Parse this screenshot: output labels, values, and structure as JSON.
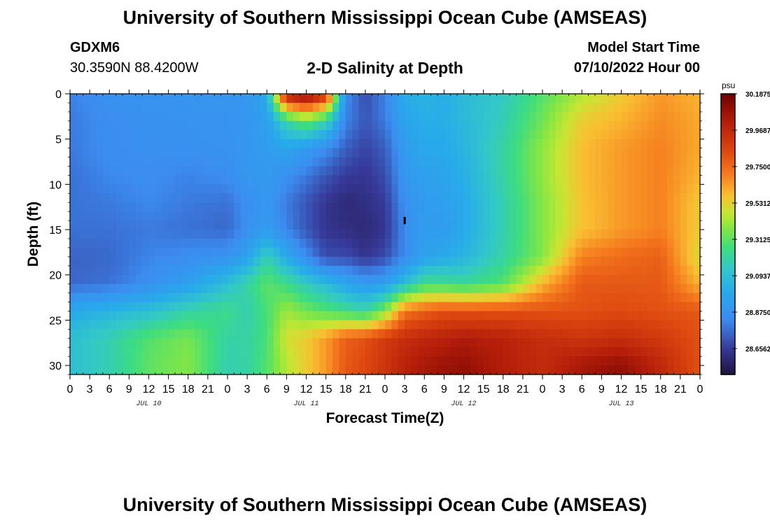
{
  "page": {
    "title": "University of Southern Mississippi Ocean Cube (AMSEAS)",
    "footer_title": "University of Southern Mississippi Ocean Cube (AMSEAS)",
    "station_id": "GDXM6",
    "station_coords": "30.3590N  88.4200W",
    "plot_title": "2-D Salinity at Depth",
    "model_start_label": "Model Start Time",
    "model_start_value": "07/10/2022 Hour 00"
  },
  "chart_data": {
    "type": "heatmap",
    "title": "2-D Salinity at Depth",
    "xlabel": "Forecast Time(Z)",
    "ylabel": "Depth (ft)",
    "x_range_hours": [
      0,
      96
    ],
    "x_tick_labels": [
      "0",
      "3",
      "6",
      "9",
      "12",
      "15",
      "18",
      "21",
      "0",
      "3",
      "6",
      "9",
      "12",
      "15",
      "18",
      "21",
      "0",
      "3",
      "6",
      "9",
      "12",
      "15",
      "18",
      "21",
      "0",
      "3",
      "6",
      "9",
      "12",
      "15",
      "18",
      "21",
      "0"
    ],
    "date_labels": [
      {
        "label": "JUL 10",
        "hour": 12
      },
      {
        "label": "JUL 11",
        "hour": 36
      },
      {
        "label": "JUL 12",
        "hour": 60
      },
      {
        "label": "JUL 13",
        "hour": 84
      }
    ],
    "ylim": [
      0,
      31
    ],
    "y_ticks": [
      0,
      5,
      10,
      15,
      20,
      25,
      30
    ],
    "y_tick_labels": [
      "0",
      "5",
      "10",
      "15",
      "20",
      "25",
      "30"
    ],
    "depth_levels": [
      0,
      3,
      6,
      9,
      12,
      15,
      18,
      21,
      24,
      27,
      30
    ],
    "time_hours": [
      0,
      6,
      12,
      18,
      24,
      27,
      30,
      33,
      36,
      39,
      42,
      45,
      48,
      51,
      54,
      57,
      60,
      66,
      72,
      78,
      84,
      90,
      96
    ],
    "salinity_grid": [
      [
        28.82,
        28.87,
        28.88,
        28.89,
        28.88,
        28.9,
        29.0,
        30.05,
        30.15,
        29.95,
        28.85,
        28.7,
        28.82,
        29.02,
        29.05,
        29.02,
        29.08,
        29.15,
        29.3,
        29.45,
        29.55,
        29.65,
        29.6
      ],
      [
        28.8,
        28.85,
        28.86,
        28.87,
        28.88,
        28.9,
        28.95,
        29.2,
        29.35,
        29.2,
        28.82,
        28.72,
        28.8,
        28.97,
        29.02,
        29.02,
        29.07,
        29.17,
        29.35,
        29.55,
        29.6,
        29.68,
        29.62
      ],
      [
        28.8,
        28.85,
        28.86,
        28.86,
        28.87,
        28.9,
        28.93,
        28.98,
        28.92,
        28.85,
        28.74,
        28.68,
        28.74,
        28.92,
        29.0,
        29.0,
        29.05,
        29.2,
        29.4,
        29.58,
        29.65,
        29.7,
        29.62
      ],
      [
        28.78,
        28.83,
        28.85,
        28.82,
        28.85,
        28.9,
        28.92,
        28.86,
        28.8,
        28.72,
        28.66,
        28.64,
        28.7,
        28.9,
        28.95,
        28.97,
        29.03,
        29.2,
        29.4,
        29.58,
        29.65,
        29.7,
        29.6
      ],
      [
        28.78,
        28.8,
        28.83,
        28.8,
        28.78,
        28.86,
        28.9,
        28.8,
        28.72,
        28.64,
        28.6,
        28.62,
        28.66,
        28.86,
        28.93,
        28.94,
        29.0,
        29.18,
        29.38,
        29.57,
        29.65,
        29.7,
        29.55
      ],
      [
        28.78,
        28.78,
        28.8,
        28.78,
        28.76,
        28.86,
        28.93,
        28.82,
        28.72,
        28.64,
        28.62,
        28.6,
        28.64,
        28.84,
        28.93,
        28.92,
        29.0,
        29.18,
        29.38,
        29.57,
        29.65,
        29.7,
        29.55
      ],
      [
        28.75,
        28.76,
        28.82,
        28.85,
        28.88,
        28.96,
        29.18,
        29.0,
        28.85,
        28.7,
        28.7,
        28.64,
        28.7,
        28.84,
        28.96,
        29.0,
        29.05,
        29.2,
        29.38,
        29.7,
        29.75,
        29.78,
        29.5
      ],
      [
        28.76,
        28.78,
        28.86,
        28.95,
        29.1,
        29.2,
        29.32,
        29.25,
        29.15,
        29.08,
        28.98,
        28.92,
        28.94,
        29.1,
        29.25,
        29.25,
        29.22,
        29.3,
        29.6,
        29.8,
        29.8,
        29.8,
        29.6
      ],
      [
        29.0,
        29.05,
        29.1,
        29.2,
        29.25,
        29.18,
        29.28,
        29.42,
        29.35,
        29.3,
        29.25,
        29.2,
        29.38,
        29.72,
        29.78,
        29.82,
        29.82,
        29.82,
        29.82,
        29.82,
        29.84,
        29.82,
        29.8
      ],
      [
        29.1,
        29.18,
        29.3,
        29.36,
        29.2,
        29.2,
        29.28,
        29.5,
        29.55,
        29.65,
        29.78,
        29.82,
        29.9,
        29.95,
        29.98,
        30.0,
        30.03,
        30.0,
        29.95,
        29.92,
        29.95,
        29.9,
        29.82
      ],
      [
        29.1,
        29.18,
        29.32,
        29.38,
        29.18,
        29.2,
        29.3,
        29.45,
        29.55,
        29.65,
        29.8,
        29.85,
        29.92,
        30.0,
        30.05,
        30.08,
        30.1,
        30.02,
        29.96,
        30.05,
        30.1,
        29.98,
        29.82
      ]
    ],
    "colorbar": {
      "unit": "psu",
      "min": 28.5,
      "max": 30.1875,
      "tick_values": [
        30.1875,
        29.96875,
        29.75,
        29.53125,
        29.3125,
        29.09375,
        28.875,
        28.65625
      ],
      "tick_labels": [
        "30.1875",
        "29.96875",
        "29.7500",
        "29.53125",
        "29.3125",
        "29.09375",
        "28.8750",
        "28.65625"
      ]
    },
    "marker": {
      "hour": 51,
      "depth_range": [
        13.6,
        14.4
      ]
    },
    "grid": false
  }
}
